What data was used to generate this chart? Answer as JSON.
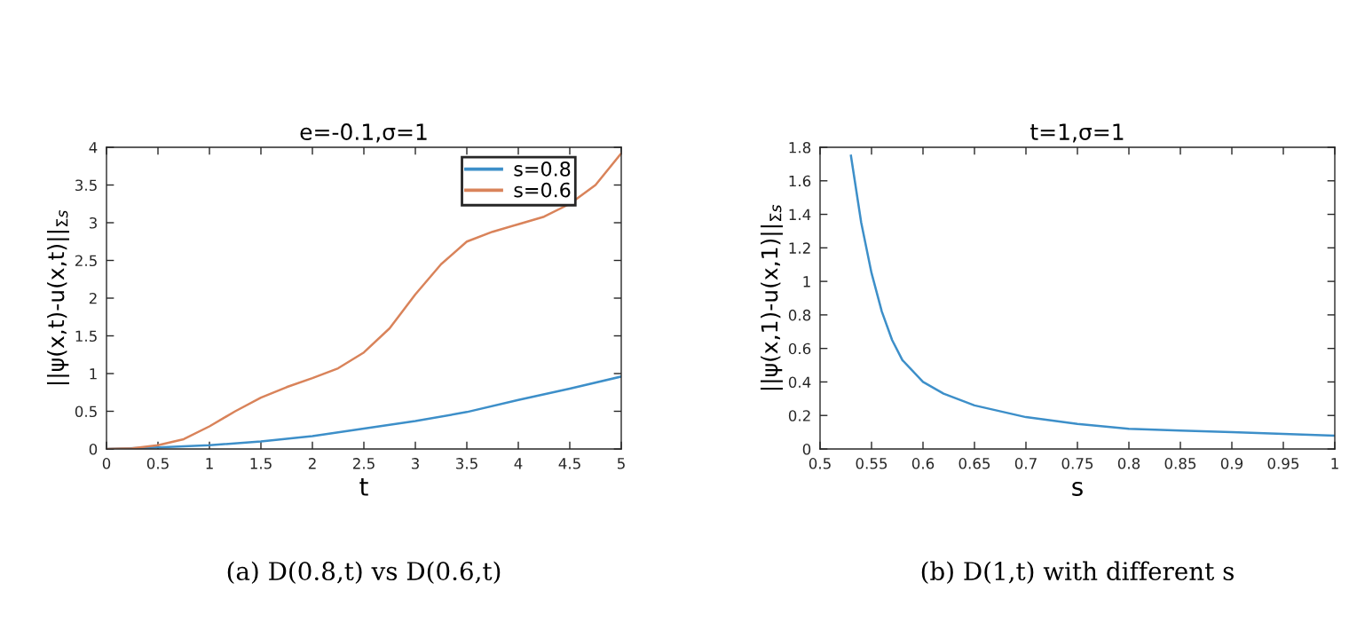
{
  "chart_data": [
    {
      "type": "line",
      "title": "e=-0.1,σ=1",
      "xlabel": "t",
      "ylabel": "||ψ(x,t)-u(x,t)||$_{Σs}$",
      "legend": "top right",
      "grid": false,
      "xlim": [
        0,
        5
      ],
      "xticks": [
        0,
        0.5,
        1,
        1.5,
        2,
        2.5,
        3,
        3.5,
        4,
        4.5,
        5
      ],
      "ylim": [
        0,
        4
      ],
      "yticks": [
        0,
        0.5,
        1,
        1.5,
        2,
        2.5,
        3,
        3.5,
        4
      ],
      "annotations": [
        "(a) D(0.8,t) vs D(0.6,t)"
      ],
      "series": [
        {
          "name": "s=0.8",
          "color": "#3d8fc9",
          "x": [
            0,
            0.5,
            1,
            1.5,
            2,
            2.5,
            3,
            3.5,
            4,
            4.5,
            5
          ],
          "values": [
            0,
            0.02,
            0.05,
            0.1,
            0.17,
            0.27,
            0.37,
            0.49,
            0.65,
            0.8,
            0.96
          ]
        },
        {
          "name": "s=0.6",
          "color": "#d9835a",
          "x": [
            0,
            0.25,
            0.5,
            0.75,
            1,
            1.25,
            1.5,
            1.75,
            2,
            2.25,
            2.5,
            2.75,
            3,
            3.25,
            3.5,
            3.75,
            4,
            4.25,
            4.5,
            4.75,
            5
          ],
          "values": [
            0,
            0.01,
            0.05,
            0.13,
            0.3,
            0.5,
            0.68,
            0.82,
            0.94,
            1.07,
            1.28,
            1.6,
            2.05,
            2.45,
            2.75,
            2.88,
            2.98,
            3.08,
            3.25,
            3.5,
            3.92
          ]
        }
      ]
    },
    {
      "type": "line",
      "title": "t=1,σ=1",
      "xlabel": "s",
      "ylabel": "||ψ(x,1)-u(x,1)||$_{Σs}$",
      "grid": false,
      "xlim": [
        0.5,
        1
      ],
      "xticks": [
        0.5,
        0.55,
        0.6,
        0.65,
        0.7,
        0.75,
        0.8,
        0.85,
        0.9,
        0.95,
        1
      ],
      "ylim": [
        0,
        1.8
      ],
      "yticks": [
        0,
        0.2,
        0.4,
        0.6,
        0.8,
        1,
        1.2,
        1.4,
        1.6,
        1.8
      ],
      "annotations": [
        "(b) D(1,t) with different s"
      ],
      "series": [
        {
          "color": "#3d8fc9",
          "x": [
            0.53,
            0.54,
            0.55,
            0.56,
            0.57,
            0.58,
            0.6,
            0.62,
            0.65,
            0.7,
            0.75,
            0.8,
            0.85,
            0.9,
            0.95,
            1
          ],
          "values": [
            1.75,
            1.35,
            1.05,
            0.82,
            0.65,
            0.53,
            0.4,
            0.33,
            0.26,
            0.19,
            0.15,
            0.12,
            0.11,
            0.1,
            0.09,
            0.08
          ]
        }
      ]
    }
  ]
}
